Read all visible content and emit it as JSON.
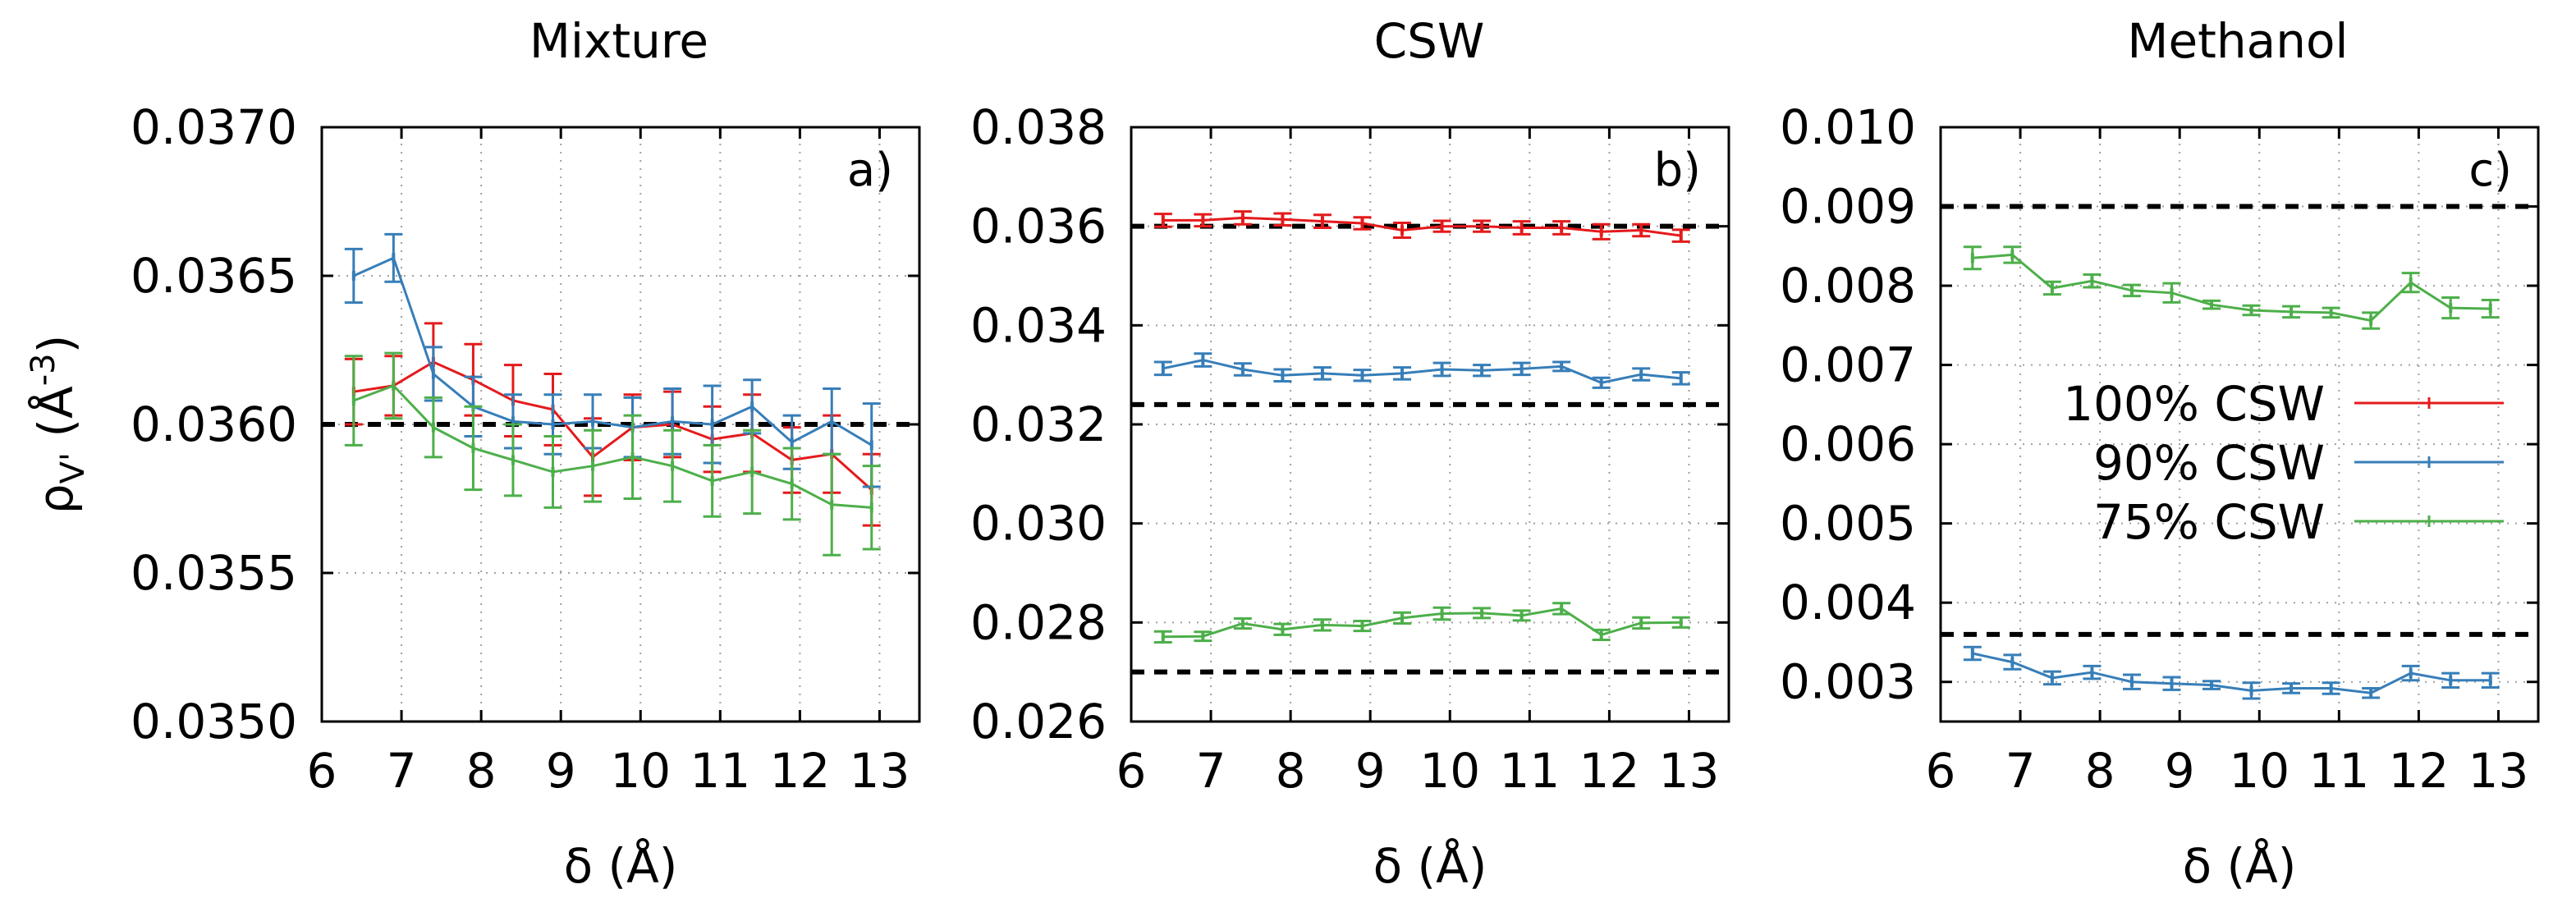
{
  "ylabel": {
    "main": "ρ",
    "sub": "V'",
    "unit_open": " (Å",
    "sup": "-3",
    "unit_close": ")"
  },
  "chart_data": [
    {
      "type": "line",
      "title": "Mixture",
      "tag": "a)",
      "xlabel": "δ (Å)",
      "ylabel": "ρV' (Å-3)",
      "xlim": [
        6,
        13.5
      ],
      "ylim": [
        0.035,
        0.037
      ],
      "xticks": [
        "6",
        "7",
        "8",
        "9",
        "10",
        "11",
        "12",
        "13"
      ],
      "yticks": [
        "0.0350",
        "0.0355",
        "0.0360",
        "0.0365",
        "0.0370"
      ],
      "grid": true,
      "x": [
        6.4,
        6.9,
        7.4,
        7.9,
        8.4,
        8.9,
        9.4,
        9.9,
        10.4,
        10.9,
        11.4,
        11.9,
        12.4,
        12.9
      ],
      "reference_lines": [
        0.036
      ],
      "series": [
        {
          "name": "100% CSW",
          "color": "#e41a1c",
          "values": [
            0.03611,
            0.03613,
            0.03621,
            0.03615,
            0.03608,
            0.03605,
            0.03589,
            0.03599,
            0.036,
            0.03595,
            0.03597,
            0.03588,
            0.0359,
            0.03578
          ],
          "errors": [
            0.00011,
            0.0001,
            0.00013,
            0.00012,
            0.00012,
            0.00012,
            0.00013,
            0.00011,
            0.00011,
            0.00011,
            0.00013,
            0.00011,
            0.00013,
            0.00012
          ]
        },
        {
          "name": "90% CSW",
          "color": "#377eb8",
          "values": [
            0.0365,
            0.03656,
            0.03617,
            0.03606,
            0.03601,
            0.036,
            0.03601,
            0.03599,
            0.03601,
            0.036,
            0.03606,
            0.03594,
            0.03601,
            0.03593
          ],
          "errors": [
            9e-05,
            8e-05,
            9e-05,
            0.0001,
            9e-05,
            0.0001,
            9e-05,
            0.0001,
            0.00011,
            0.00013,
            9e-05,
            9e-05,
            0.00011,
            0.00014
          ]
        },
        {
          "name": "75% CSW",
          "color": "#4daf4a",
          "values": [
            0.03608,
            0.03613,
            0.03599,
            0.03592,
            0.03588,
            0.03584,
            0.03586,
            0.03589,
            0.03586,
            0.03581,
            0.03584,
            0.0358,
            0.03573,
            0.03572
          ],
          "errors": [
            0.00015,
            0.00011,
            0.0001,
            0.00014,
            0.00012,
            0.00012,
            0.00012,
            0.00014,
            0.00012,
            0.00012,
            0.00014,
            0.00012,
            0.00017,
            0.00014
          ]
        }
      ]
    },
    {
      "type": "line",
      "title": "CSW",
      "tag": "b)",
      "xlabel": "δ (Å)",
      "ylabel": "",
      "xlim": [
        6,
        13.5
      ],
      "ylim": [
        0.026,
        0.038
      ],
      "xticks": [
        "6",
        "7",
        "8",
        "9",
        "10",
        "11",
        "12",
        "13"
      ],
      "yticks": [
        "0.026",
        "0.028",
        "0.030",
        "0.032",
        "0.034",
        "0.036",
        "0.038"
      ],
      "grid": true,
      "x": [
        6.4,
        6.9,
        7.4,
        7.9,
        8.4,
        8.9,
        9.4,
        9.9,
        10.4,
        10.9,
        11.4,
        11.9,
        12.4,
        12.9
      ],
      "reference_lines": [
        0.036,
        0.0324,
        0.027
      ],
      "series": [
        {
          "name": "100% CSW",
          "color": "#e41a1c",
          "values": [
            0.03612,
            0.03612,
            0.03617,
            0.03614,
            0.0361,
            0.03606,
            0.03592,
            0.036,
            0.036,
            0.03597,
            0.03597,
            0.03589,
            0.03592,
            0.03581
          ],
          "errors": [
            0.00013,
            0.00012,
            0.00013,
            0.00012,
            0.00013,
            0.00012,
            0.00015,
            0.00011,
            0.00011,
            0.00013,
            0.00013,
            0.00015,
            0.00012,
            0.00012
          ]
        },
        {
          "name": "90% CSW",
          "color": "#377eb8",
          "values": [
            0.03313,
            0.0333,
            0.03311,
            0.03299,
            0.03303,
            0.03299,
            0.03303,
            0.03311,
            0.03309,
            0.03312,
            0.03317,
            0.03284,
            0.03301,
            0.03293
          ],
          "errors": [
            0.00013,
            0.00013,
            0.00012,
            0.00012,
            0.00012,
            0.00011,
            0.00012,
            0.00013,
            0.00011,
            0.00012,
            9e-05,
            0.0001,
            0.00012,
            0.00012
          ]
        },
        {
          "name": "75% CSW",
          "color": "#4daf4a",
          "values": [
            0.02771,
            0.02772,
            0.02798,
            0.02786,
            0.02795,
            0.02793,
            0.02809,
            0.02818,
            0.02819,
            0.02814,
            0.02828,
            0.02775,
            0.02799,
            0.028
          ],
          "errors": [
            0.00011,
            9e-05,
            0.0001,
            0.00011,
            0.00011,
            0.0001,
            0.00011,
            0.00012,
            0.0001,
            0.0001,
            0.00011,
            0.0001,
            0.00011,
            0.0001
          ]
        }
      ]
    },
    {
      "type": "line",
      "title": "Methanol",
      "tag": "c)",
      "xlabel": "δ (Å)",
      "ylabel": "",
      "xlim": [
        6,
        13.5
      ],
      "ylim": [
        0.0025,
        0.01
      ],
      "xticks": [
        "6",
        "7",
        "8",
        "9",
        "10",
        "11",
        "12",
        "13"
      ],
      "yticks": [
        "0.003",
        "0.004",
        "0.005",
        "0.006",
        "0.007",
        "0.008",
        "0.009",
        "0.010"
      ],
      "grid": true,
      "x": [
        6.4,
        6.9,
        7.4,
        7.9,
        8.4,
        8.9,
        9.4,
        9.9,
        10.4,
        10.9,
        11.4,
        11.9,
        12.4,
        12.9
      ],
      "reference_lines": [
        0.009,
        0.0036
      ],
      "series": [
        {
          "name": "90% CSW",
          "color": "#377eb8",
          "values": [
            0.00336,
            0.00325,
            0.00305,
            0.00312,
            0.003,
            0.00298,
            0.00296,
            0.00289,
            0.00292,
            0.00292,
            0.00286,
            0.00311,
            0.00302,
            0.00302
          ],
          "errors": [
            8e-05,
            9e-05,
            8e-05,
            8e-05,
            9e-05,
            8e-05,
            5e-05,
            0.0001,
            6e-05,
            7e-05,
            6e-05,
            9e-05,
            9e-05,
            9e-05
          ]
        },
        {
          "name": "75% CSW",
          "color": "#4daf4a",
          "values": [
            0.00835,
            0.00839,
            0.00797,
            0.00806,
            0.00794,
            0.00791,
            0.00776,
            0.00769,
            0.00767,
            0.00766,
            0.00756,
            0.00804,
            0.00772,
            0.00771
          ],
          "errors": [
            0.00014,
            0.0001,
            8e-05,
            8e-05,
            7e-05,
            0.00012,
            5e-05,
            6e-05,
            7e-05,
            6e-05,
            0.0001,
            0.00012,
            0.00013,
            0.00011
          ]
        }
      ]
    }
  ],
  "legend": {
    "placement": "center-right of panel c",
    "entries": [
      {
        "label": "100% CSW",
        "color": "#e41a1c"
      },
      {
        "label": "90% CSW",
        "color": "#377eb8"
      },
      {
        "label": "75% CSW",
        "color": "#4daf4a"
      }
    ]
  }
}
